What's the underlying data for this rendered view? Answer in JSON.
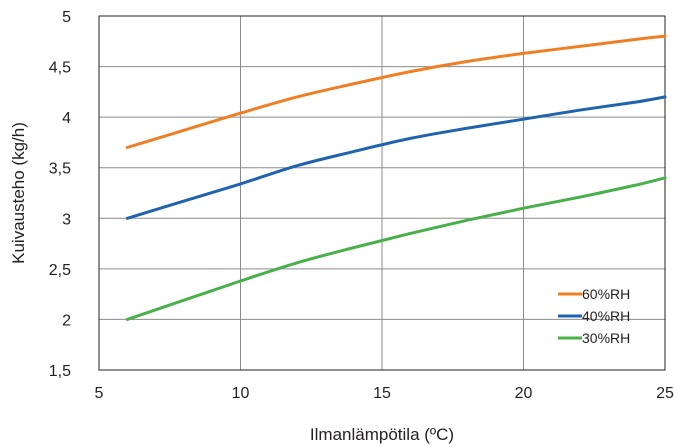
{
  "chart_data": {
    "type": "line",
    "xlabel": "Ilmanlämpötila (ºC)",
    "ylabel": "Kuivausteho (kg/h)",
    "xlim": [
      5,
      25
    ],
    "ylim": [
      1.5,
      5
    ],
    "x_ticks": [
      "5",
      "10",
      "15",
      "20",
      "25"
    ],
    "y_ticks": [
      "1,5",
      "2",
      "2,5",
      "3",
      "3,5",
      "4",
      "4,5",
      "5"
    ],
    "x_tick_values": [
      5,
      10,
      15,
      20,
      25
    ],
    "y_tick_values": [
      1.5,
      2,
      2.5,
      3,
      3.5,
      4,
      4.5,
      5
    ],
    "grid": true,
    "legend_position": "bottom-right",
    "series": [
      {
        "name": "60%RH",
        "color": "#f07f24",
        "x": [
          6,
          8,
          10,
          12,
          14,
          16,
          18,
          20,
          22,
          24,
          25
        ],
        "y": [
          3.7,
          3.87,
          4.04,
          4.2,
          4.33,
          4.45,
          4.55,
          4.63,
          4.7,
          4.77,
          4.8
        ]
      },
      {
        "name": "40%RH",
        "color": "#1f63ae",
        "x": [
          6,
          8,
          10,
          12,
          14,
          16,
          18,
          20,
          22,
          24,
          25
        ],
        "y": [
          3.0,
          3.17,
          3.34,
          3.52,
          3.66,
          3.79,
          3.89,
          3.98,
          4.07,
          4.15,
          4.2
        ]
      },
      {
        "name": "30%RH",
        "color": "#48b04a",
        "x": [
          6,
          8,
          10,
          12,
          14,
          16,
          18,
          20,
          22,
          24,
          25
        ],
        "y": [
          2.0,
          2.19,
          2.38,
          2.56,
          2.71,
          2.85,
          2.98,
          3.1,
          3.21,
          3.33,
          3.4
        ]
      }
    ]
  }
}
